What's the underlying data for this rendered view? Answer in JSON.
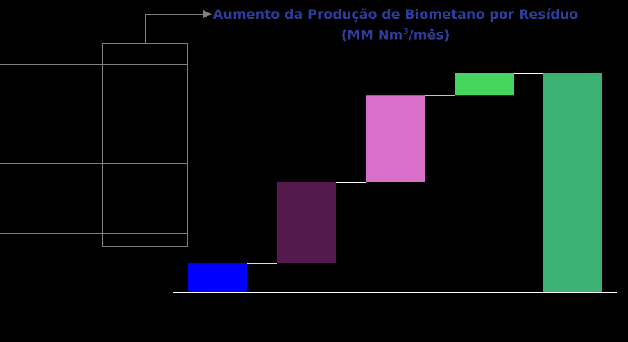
{
  "chart_data": {
    "type": "waterfall",
    "title": "Aumento da Produção de Biometano por Resíduo",
    "subtitle_prefix": "(MM Nm",
    "subtitle_sup": "3",
    "subtitle_suffix": "/mês)",
    "categories": [
      "",
      "",
      "",
      "",
      "",
      ""
    ],
    "steps": [
      {
        "value": 1.3,
        "color": "#0000FF"
      },
      {
        "value": 3.6,
        "color": "#541A4E"
      },
      {
        "value": 3.9,
        "color": "#D870C9"
      },
      {
        "value": 1.0,
        "color": "#46D45E"
      }
    ],
    "total": {
      "value": 9.8,
      "color": "#3BB273"
    },
    "ylim": [
      0,
      10
    ],
    "grid": false,
    "legend": "left-table"
  },
  "legend_table": {
    "rows": [
      "",
      "",
      "",
      "",
      "",
      ""
    ],
    "line_color": "#808080"
  }
}
